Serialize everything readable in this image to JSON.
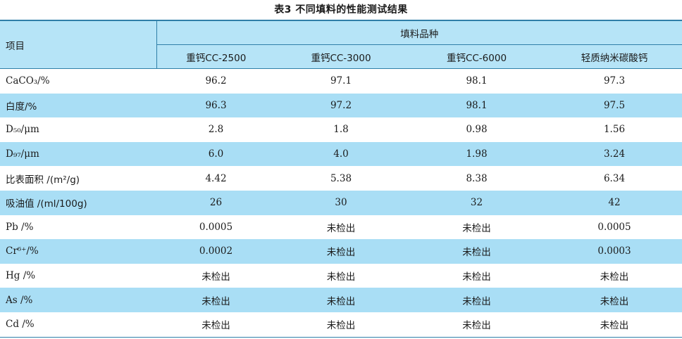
{
  "caption": "表3 不同填料的性能测试结果",
  "header": {
    "item": "项目",
    "group": "填料品种",
    "columns": [
      "重钙CC-2500",
      "重钙CC-3000",
      "重钙CC-6000",
      "轻质纳米碳酸钙"
    ]
  },
  "rows": [
    {
      "label": "CaCO₃/%",
      "values": [
        "96.2",
        "97.1",
        "98.1",
        "97.3"
      ]
    },
    {
      "label": "白度/%",
      "values": [
        "96.3",
        "97.2",
        "98.1",
        "97.5"
      ]
    },
    {
      "label": "D₅₀/μm",
      "values": [
        "2.8",
        "1.8",
        "0.98",
        "1.56"
      ]
    },
    {
      "label": "D₉₇/μm",
      "values": [
        "6.0",
        "4.0",
        "1.98",
        "3.24"
      ]
    },
    {
      "label": "比表面积 /(m²/g)",
      "values": [
        "4.42",
        "5.38",
        "8.38",
        "6.34"
      ]
    },
    {
      "label": "吸油值 /(ml/100g)",
      "values": [
        "26",
        "30",
        "32",
        "42"
      ]
    },
    {
      "label": "Pb /%",
      "values": [
        "0.0005",
        "未检出",
        "未检出",
        "0.0005"
      ]
    },
    {
      "label": "Cr⁶⁺/%",
      "values": [
        "0.0002",
        "未检出",
        "未检出",
        "0.0003"
      ]
    },
    {
      "label": "Hg /%",
      "values": [
        "未检出",
        "未检出",
        "未检出",
        "未检出"
      ]
    },
    {
      "label": "As /%",
      "values": [
        "未检出",
        "未检出",
        "未检出",
        "未检出"
      ]
    },
    {
      "label": "Cd /%",
      "values": [
        "未检出",
        "未检出",
        "未检出",
        "未检出"
      ]
    }
  ]
}
